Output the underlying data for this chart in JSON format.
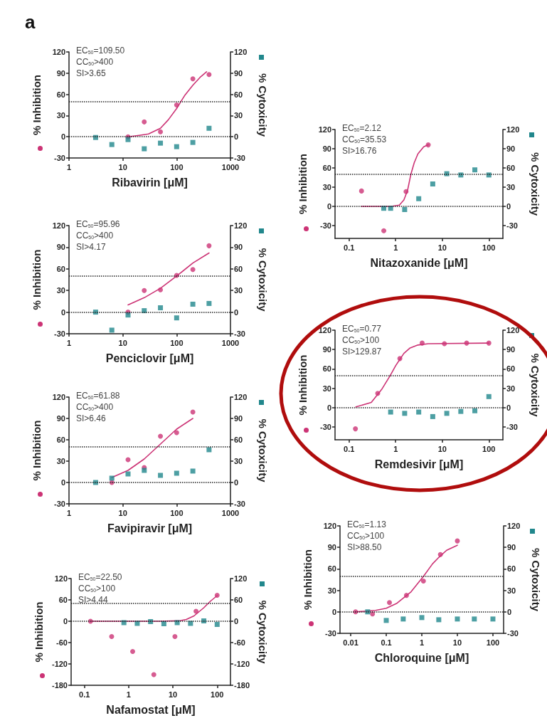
{
  "chart_data": [
    {
      "type": "scatter",
      "title": "a",
      "xlabel": "Ribavirin [μM]",
      "ylabel": "% Inhibition",
      "y2label": "% Cytoxicity",
      "log": "x",
      "xlim": [
        1,
        1000
      ],
      "xticks": [
        1,
        10,
        100,
        1000
      ],
      "ylim": [
        -30,
        120
      ],
      "yticks": [
        -30,
        0,
        30,
        60,
        90,
        120
      ],
      "y2lim": [
        -30,
        120
      ],
      "y2ticks": [
        -30,
        0,
        30,
        60,
        90,
        120
      ],
      "annotations": [
        "EC$_{50}$=109.50",
        "CC$_{50}$>400",
        "SI>3.65"
      ],
      "ref_lines": [
        {
          "axis": "y",
          "value": 50,
          "color": "#222222",
          "line_style": "dotted"
        },
        {
          "axis": "y",
          "value": 0,
          "color": "#222222",
          "line_style": "dotted"
        }
      ],
      "series": [
        {
          "type": "line",
          "color": "#cc3375",
          "marker": "none",
          "line_style": "solid",
          "x": [
            12.5,
            20,
            30,
            50,
            70,
            100,
            140,
            200,
            280,
            360
          ],
          "values": [
            0,
            2,
            4,
            12,
            24,
            40,
            58,
            73,
            85,
            92
          ]
        },
        {
          "type": "scatter",
          "color": "#cc3375",
          "marker": "circle",
          "x": [
            12.5,
            25,
            50,
            100,
            200,
            400
          ],
          "values": [
            0,
            21,
            7,
            45,
            82,
            88
          ]
        },
        {
          "type": "scatter",
          "color": "#21878c",
          "marker": "square",
          "axis": "y2",
          "x": [
            3.125,
            6.25,
            12.5,
            25,
            50,
            100,
            200,
            400
          ],
          "values": [
            -1,
            -11,
            -4,
            -17,
            -9,
            -14,
            -8,
            12
          ]
        }
      ]
    },
    {
      "type": "scatter",
      "xlabel": "Penciclovir [μM]",
      "ylabel": "% Inhibition",
      "y2label": "% Cytoxicity",
      "log": "x",
      "xlim": [
        1,
        1000
      ],
      "xticks": [
        1,
        10,
        100,
        1000
      ],
      "ylim": [
        -30,
        120
      ],
      "yticks": [
        -30,
        0,
        30,
        60,
        90,
        120
      ],
      "y2lim": [
        -30,
        120
      ],
      "y2ticks": [
        -30,
        0,
        30,
        60,
        90,
        120
      ],
      "annotations": [
        "EC$_{50}$=95.96",
        "CC$_{50}$>400",
        "SI>4.17"
      ],
      "ref_lines": [
        {
          "axis": "y",
          "value": 50,
          "color": "#222222",
          "line_style": "dotted"
        },
        {
          "axis": "y",
          "value": 0,
          "color": "#222222",
          "line_style": "dotted"
        }
      ],
      "series": [
        {
          "type": "line",
          "color": "#cc3375",
          "marker": "none",
          "line_style": "solid",
          "x": [
            12.5,
            25,
            50,
            100,
            200,
            400
          ],
          "values": [
            10,
            20,
            33,
            50,
            68,
            82
          ]
        },
        {
          "type": "scatter",
          "color": "#cc3375",
          "marker": "circle",
          "x": [
            12.5,
            25,
            50,
            100,
            200,
            400
          ],
          "values": [
            0,
            30,
            31,
            51,
            59,
            92
          ]
        },
        {
          "type": "scatter",
          "color": "#21878c",
          "marker": "square",
          "axis": "y2",
          "x": [
            3.125,
            6.25,
            12.5,
            25,
            50,
            100,
            200,
            400
          ],
          "values": [
            0,
            -25,
            -4,
            2,
            6,
            -8,
            11,
            12
          ]
        }
      ]
    },
    {
      "type": "scatter",
      "xlabel": "Favipiravir [μM]",
      "ylabel": "% Inhibition",
      "y2label": "% Cytoxicity",
      "log": "x",
      "xlim": [
        1,
        1000
      ],
      "xticks": [
        1,
        10,
        100,
        1000
      ],
      "ylim": [
        -30,
        120
      ],
      "yticks": [
        -30,
        0,
        30,
        60,
        90,
        120
      ],
      "y2lim": [
        -30,
        120
      ],
      "y2ticks": [
        -30,
        0,
        30,
        60,
        90,
        120
      ],
      "annotations": [
        "EC$_{50}$=61.88",
        "CC$_{50}$>400",
        "SI>6.46"
      ],
      "ref_lines": [
        {
          "axis": "y",
          "value": 50,
          "color": "#222222",
          "line_style": "dotted"
        },
        {
          "axis": "y",
          "value": 0,
          "color": "#222222",
          "line_style": "dotted"
        }
      ],
      "series": [
        {
          "type": "line",
          "color": "#cc3375",
          "marker": "none",
          "line_style": "solid",
          "x": [
            6.25,
            12.5,
            25,
            50,
            100,
            200
          ],
          "values": [
            7,
            17,
            33,
            54,
            75,
            90
          ]
        },
        {
          "type": "scatter",
          "color": "#cc3375",
          "marker": "circle",
          "x": [
            6.25,
            12.5,
            25,
            50,
            100,
            200
          ],
          "values": [
            0,
            32,
            21,
            65,
            70,
            99
          ]
        },
        {
          "type": "scatter",
          "color": "#21878c",
          "marker": "square",
          "axis": "y2",
          "x": [
            3.125,
            6.25,
            12.5,
            25,
            50,
            100,
            200,
            400
          ],
          "values": [
            0,
            6,
            12,
            17,
            10,
            13,
            16,
            46
          ]
        }
      ]
    },
    {
      "type": "scatter",
      "xlabel": "Nafamostat [μM]",
      "ylabel": "% Inhibition",
      "y2label": "% Cytoxicity",
      "log": "x",
      "xlim": [
        0.05,
        200
      ],
      "xticks": [
        0.1,
        1,
        10,
        100
      ],
      "ylim": [
        -180,
        120
      ],
      "yticks": [
        -180,
        -120,
        -60,
        0,
        60,
        120
      ],
      "y2lim": [
        -180,
        120
      ],
      "y2ticks": [
        -180,
        -120,
        -60,
        0,
        60,
        120
      ],
      "annotations": [
        "EC$_{50}$=22.50",
        "CC$_{50}$>100",
        "SI>4.44"
      ],
      "ref_lines": [
        {
          "axis": "y",
          "value": 50,
          "color": "#222222",
          "line_style": "dotted"
        },
        {
          "axis": "y",
          "value": 0,
          "color": "#222222",
          "line_style": "dotted"
        }
      ],
      "series": [
        {
          "type": "line",
          "color": "#cc3375",
          "marker": "none",
          "line_style": "solid",
          "x": [
            0.137,
            1,
            5,
            10,
            15,
            20,
            30,
            50,
            70,
            100
          ],
          "values": [
            0,
            0,
            0,
            1,
            2,
            5,
            15,
            38,
            56,
            72
          ]
        },
        {
          "type": "scatter",
          "color": "#cc3375",
          "marker": "circle",
          "x": [
            0.137,
            0.412,
            1.23,
            3.7,
            11.1,
            33.3,
            100
          ],
          "values": [
            0,
            -43,
            -85,
            -150,
            -43,
            28,
            73
          ]
        },
        {
          "type": "scatter",
          "color": "#21878c",
          "marker": "square",
          "axis": "y2",
          "x": [
            0.78,
            1.56,
            3.125,
            6.25,
            12.5,
            25,
            50,
            100
          ],
          "values": [
            -4,
            -6,
            -1,
            -7,
            -4,
            -6,
            1,
            -9
          ]
        }
      ]
    },
    {
      "type": "scatter",
      "xlabel": "Nitazoxanide [μM]",
      "ylabel": "% Inhibition",
      "y2label": "% Cytoxicity",
      "log": "x",
      "xlim": [
        0.05,
        200
      ],
      "xticks": [
        0.1,
        1,
        10,
        100
      ],
      "ylim": [
        -50,
        120
      ],
      "yticks": [
        -30,
        0,
        30,
        60,
        90,
        120
      ],
      "y2lim": [
        -50,
        120
      ],
      "y2ticks": [
        -30,
        0,
        30,
        60,
        90,
        120
      ],
      "annotations": [
        "EC$_{50}$=2.12",
        "CC$_{50}$=35.53",
        "SI>16.76"
      ],
      "ref_lines": [
        {
          "axis": "y",
          "value": 50,
          "color": "#222222",
          "line_style": "dotted"
        },
        {
          "axis": "y",
          "value": 0,
          "color": "#222222",
          "line_style": "dotted"
        }
      ],
      "series": [
        {
          "type": "line",
          "color": "#cc3375",
          "marker": "none",
          "line_style": "solid",
          "x": [
            0.185,
            0.8,
            1.2,
            1.5,
            1.8,
            2.12,
            2.5,
            3,
            4,
            5
          ],
          "values": [
            0,
            0,
            2,
            10,
            25,
            50,
            68,
            82,
            93,
            96
          ]
        },
        {
          "type": "scatter",
          "color": "#cc3375",
          "marker": "circle",
          "x": [
            0.185,
            0.556,
            1.67,
            5
          ],
          "values": [
            24,
            -38,
            23,
            96
          ]
        },
        {
          "type": "scatter",
          "color": "#21878c",
          "marker": "square",
          "axis": "y2",
          "x": [
            0.556,
            0.78,
            1.56,
            3.125,
            6.25,
            12.5,
            25,
            50,
            100
          ],
          "values": [
            -3,
            -3,
            -5,
            12,
            35,
            51,
            49,
            57,
            49
          ]
        }
      ]
    },
    {
      "type": "scatter",
      "xlabel": "Remdesivir [μM]",
      "ylabel": "% Inhibition",
      "y2label": "% Cytoxicity",
      "log": "x",
      "xlim": [
        0.05,
        200
      ],
      "xticks": [
        0.1,
        1,
        10,
        100
      ],
      "ylim": [
        -50,
        120
      ],
      "yticks": [
        -30,
        0,
        30,
        60,
        90,
        120
      ],
      "y2lim": [
        -50,
        120
      ],
      "y2ticks": [
        -30,
        0,
        30,
        60,
        90,
        120
      ],
      "annotations": [
        "EC$_{50}$=0.77",
        "CC$_{50}$>100",
        "SI>129.87"
      ],
      "ref_lines": [
        {
          "axis": "y",
          "value": 50,
          "color": "#222222",
          "line_style": "dotted"
        },
        {
          "axis": "y",
          "value": 0,
          "color": "#222222",
          "line_style": "dotted"
        }
      ],
      "series": [
        {
          "type": "line",
          "color": "#cc3375",
          "marker": "none",
          "line_style": "solid",
          "x": [
            0.14,
            0.3,
            0.5,
            0.77,
            1,
            1.5,
            2,
            3,
            5,
            100
          ],
          "values": [
            1,
            8,
            28,
            50,
            65,
            84,
            92,
            97,
            99,
            100
          ]
        },
        {
          "type": "scatter",
          "color": "#cc3375",
          "marker": "circle",
          "x": [
            0.137,
            0.412,
            1.23,
            3.7,
            11.1,
            33.3,
            100
          ],
          "values": [
            -33,
            22,
            76,
            100,
            99,
            100,
            100
          ]
        },
        {
          "type": "scatter",
          "color": "#21878c",
          "marker": "square",
          "axis": "y2",
          "x": [
            0.78,
            1.56,
            3.125,
            6.25,
            12.5,
            25,
            50,
            100
          ],
          "values": [
            -7,
            -9,
            -7,
            -14,
            -9,
            -6,
            -5,
            17
          ]
        }
      ]
    },
    {
      "type": "scatter",
      "xlabel": "Chloroquine [μM]",
      "ylabel": "% Inhibition",
      "y2label": "% Cytoxicity",
      "log": "x",
      "xlim": [
        0.005,
        200
      ],
      "xticks": [
        0.01,
        0.1,
        1,
        10,
        100
      ],
      "ylim": [
        -30,
        120
      ],
      "yticks": [
        -30,
        0,
        30,
        60,
        90,
        120
      ],
      "y2lim": [
        -30,
        120
      ],
      "y2ticks": [
        -30,
        0,
        30,
        60,
        90,
        120
      ],
      "annotations": [
        "EC$_{50}$=1.13",
        "CC$_{50}$>100",
        "SI>88.50"
      ],
      "ref_lines": [
        {
          "axis": "y",
          "value": 50,
          "color": "#222222",
          "line_style": "dotted"
        },
        {
          "axis": "y",
          "value": 0,
          "color": "#222222",
          "line_style": "dotted"
        }
      ],
      "series": [
        {
          "type": "line",
          "color": "#cc3375",
          "marker": "none",
          "line_style": "solid",
          "x": [
            0.0137,
            0.05,
            0.1,
            0.2,
            0.5,
            1.13,
            2,
            3,
            5,
            10
          ],
          "values": [
            0,
            2,
            5,
            12,
            28,
            50,
            67,
            76,
            86,
            93
          ]
        },
        {
          "type": "scatter",
          "color": "#cc3375",
          "marker": "circle",
          "x": [
            0.0137,
            0.041,
            0.123,
            0.37,
            1.11,
            3.33,
            10
          ],
          "values": [
            0,
            -3,
            13,
            23,
            43,
            80,
            99
          ]
        },
        {
          "type": "scatter",
          "color": "#21878c",
          "marker": "square",
          "axis": "y2",
          "x": [
            0.03,
            0.1,
            0.3,
            1,
            3,
            10,
            30,
            100
          ],
          "values": [
            0,
            -12,
            -10,
            -8,
            -11,
            -10,
            -10,
            -10
          ]
        }
      ]
    }
  ]
}
